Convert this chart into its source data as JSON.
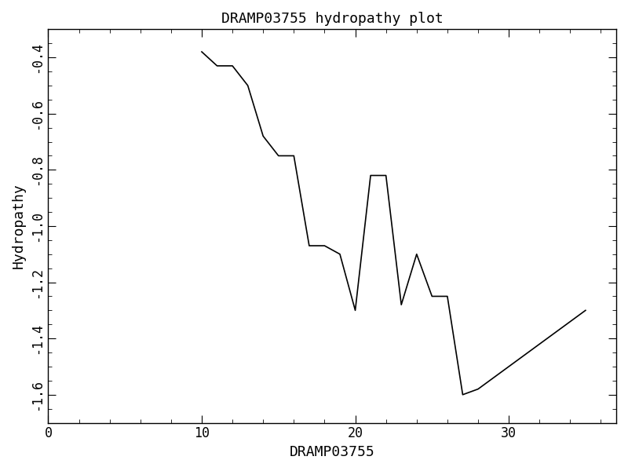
{
  "title": "DRAMP03755 hydropathy plot",
  "xlabel": "DRAMP03755",
  "ylabel": "Hydropathy",
  "x": [
    10,
    11,
    12,
    13,
    14,
    15,
    16,
    17,
    18,
    19,
    20,
    21,
    22,
    23,
    24,
    25,
    26,
    27,
    28,
    35
  ],
  "y": [
    -0.38,
    -0.43,
    -0.43,
    -0.5,
    -0.68,
    -0.75,
    -0.75,
    -1.07,
    -1.07,
    -1.1,
    -1.3,
    -0.82,
    -0.82,
    -1.28,
    -1.1,
    -1.25,
    -1.25,
    -1.6,
    -1.58,
    -1.3
  ],
  "xlim": [
    0,
    37
  ],
  "ylim": [
    -1.7,
    -0.3
  ],
  "xticks": [
    0,
    10,
    20,
    30
  ],
  "yticks": [
    -1.6,
    -1.4,
    -1.2,
    -1.0,
    -0.8,
    -0.6,
    -0.4
  ],
  "ytick_labels": [
    "-1.6",
    "-1.4",
    "-1.2",
    "-1.0",
    "-0.8",
    "-0.6",
    "-0.4"
  ],
  "line_color": "#000000",
  "bg_color": "#ffffff",
  "title_fontsize": 13,
  "label_fontsize": 13,
  "tick_fontsize": 12
}
